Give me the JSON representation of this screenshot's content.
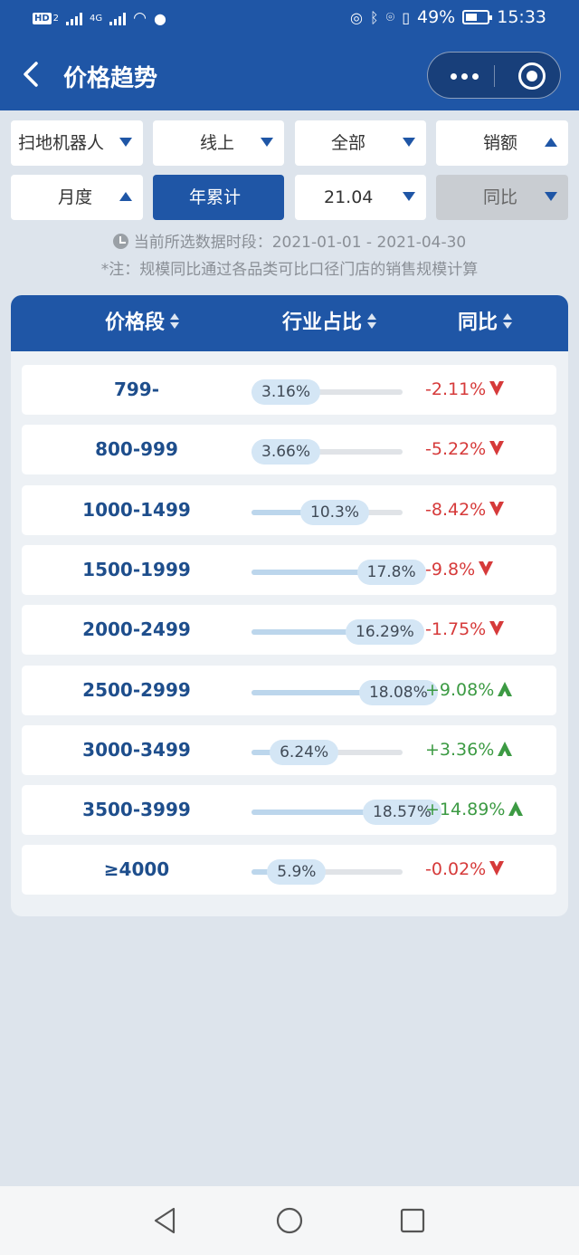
{
  "status": {
    "battery": "49%",
    "time": "15:33",
    "hd_label": "HD",
    "sim_index": "2",
    "net_label": "4G"
  },
  "header": {
    "title": "价格趋势"
  },
  "filters": {
    "category": "扫地机器人",
    "channel": "线上",
    "scope": "全部",
    "metric": "销额",
    "period": "月度",
    "accumulate": "年累计",
    "month": "21.04",
    "compare": "同比"
  },
  "info": {
    "range_prefix": "当前所选数据时段：",
    "range": "2021-01-01 - 2021-04-30",
    "note": "*注：规模同比通过各品类可比口径门店的销售规模计算"
  },
  "table": {
    "headers": [
      "价格段",
      "行业占比",
      "同比"
    ],
    "rows": [
      {
        "price": "799-",
        "share": "3.16%",
        "share_value": 3.16,
        "yoy": "-2.11%",
        "trend": "down"
      },
      {
        "price": "800-999",
        "share": "3.66%",
        "share_value": 3.66,
        "yoy": "-5.22%",
        "trend": "down"
      },
      {
        "price": "1000-1499",
        "share": "10.3%",
        "share_value": 10.3,
        "yoy": "-8.42%",
        "trend": "down"
      },
      {
        "price": "1500-1999",
        "share": "17.8%",
        "share_value": 17.8,
        "yoy": "-9.8%",
        "trend": "down"
      },
      {
        "price": "2000-2499",
        "share": "16.29%",
        "share_value": 16.29,
        "yoy": "-1.75%",
        "trend": "down"
      },
      {
        "price": "2500-2999",
        "share": "18.08%",
        "share_value": 18.08,
        "yoy": "+9.08%",
        "trend": "up"
      },
      {
        "price": "3000-3499",
        "share": "6.24%",
        "share_value": 6.24,
        "yoy": "+3.36%",
        "trend": "up"
      },
      {
        "price": "3500-3999",
        "share": "18.57%",
        "share_value": 18.57,
        "yoy": "+14.89%",
        "trend": "up"
      },
      {
        "price": "≥4000",
        "share": "5.9%",
        "share_value": 5.9,
        "yoy": "-0.02%",
        "trend": "down"
      }
    ]
  },
  "colors": {
    "brand": "#1f56a6",
    "negative": "#d63a3a",
    "positive": "#3c9a43"
  }
}
